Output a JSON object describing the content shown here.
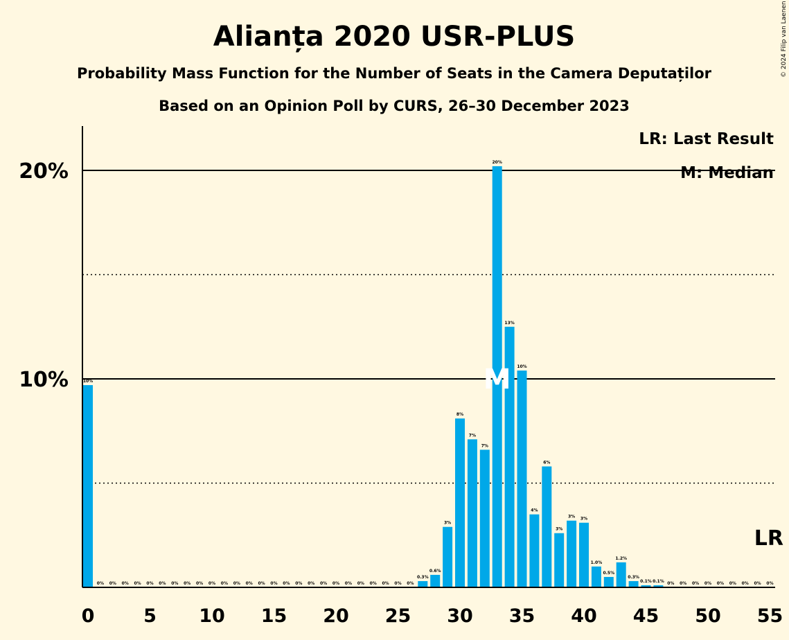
{
  "title": "Alianța 2020 USR-PLUS",
  "subtitle1": "Probability Mass Function for the Number of Seats in the Camera Deputaților",
  "subtitle2": "Based on an Opinion Poll by CURS, 26–30 December 2023",
  "copyright": "© 2024 Filip van Laenen",
  "legend": {
    "lr": "LR: Last Result",
    "m": "M: Median"
  },
  "median_marker": "M",
  "last_result_marker": "LR",
  "colors": {
    "background": "#fff8e1",
    "bar": "#00a8e8",
    "axis": "#000000"
  },
  "chart_data": {
    "type": "bar",
    "x": [
      0,
      1,
      2,
      3,
      4,
      5,
      6,
      7,
      8,
      9,
      10,
      11,
      12,
      13,
      14,
      15,
      16,
      17,
      18,
      19,
      20,
      21,
      22,
      23,
      24,
      25,
      26,
      27,
      28,
      29,
      30,
      31,
      32,
      33,
      34,
      35,
      36,
      37,
      38,
      39,
      40,
      41,
      42,
      43,
      44,
      45,
      46,
      47,
      48,
      49,
      50,
      51,
      52,
      53,
      54,
      55
    ],
    "values": [
      9.7,
      0,
      0,
      0,
      0,
      0,
      0,
      0,
      0,
      0,
      0,
      0,
      0,
      0,
      0,
      0,
      0,
      0,
      0,
      0,
      0,
      0,
      0,
      0,
      0,
      0,
      0,
      0.3,
      0.6,
      2.9,
      8.1,
      7.1,
      6.6,
      20.2,
      12.5,
      10.4,
      3.5,
      5.8,
      2.6,
      3.2,
      3.1,
      1.0,
      0.5,
      1.2,
      0.3,
      0.1,
      0.1,
      0,
      0,
      0,
      0,
      0,
      0,
      0,
      0,
      0
    ],
    "data_labels": [
      "10%",
      "0%",
      "0%",
      "0%",
      "0%",
      "0%",
      "0%",
      "0%",
      "0%",
      "0%",
      "0%",
      "0%",
      "0%",
      "0%",
      "0%",
      "0%",
      "0%",
      "0%",
      "0%",
      "0%",
      "0%",
      "0%",
      "0%",
      "0%",
      "0%",
      "0%",
      "0%",
      "0.3%",
      "0.6%",
      "3%",
      "8%",
      "7%",
      "7%",
      "20%",
      "13%",
      "10%",
      "4%",
      "6%",
      "3%",
      "3%",
      "3%",
      "1.0%",
      "0.5%",
      "1.2%",
      "0.3%",
      "0.1%",
      "0.1%",
      "0%",
      "0%",
      "0%",
      "0%",
      "0%",
      "0%",
      "0%",
      "0%",
      "0%"
    ],
    "median": 33,
    "last_result": 55,
    "ylim": [
      0,
      22
    ],
    "yticks": [
      10,
      20
    ],
    "ytick_labels": [
      "10%",
      "20%"
    ],
    "minor_gridlines": [
      5,
      15
    ],
    "xticks": [
      0,
      5,
      10,
      15,
      20,
      25,
      30,
      35,
      40,
      45,
      50,
      55
    ],
    "xtick_labels": [
      "0",
      "5",
      "10",
      "15",
      "20",
      "25",
      "30",
      "35",
      "40",
      "45",
      "50",
      "55"
    ],
    "legend_position": "top-right"
  }
}
